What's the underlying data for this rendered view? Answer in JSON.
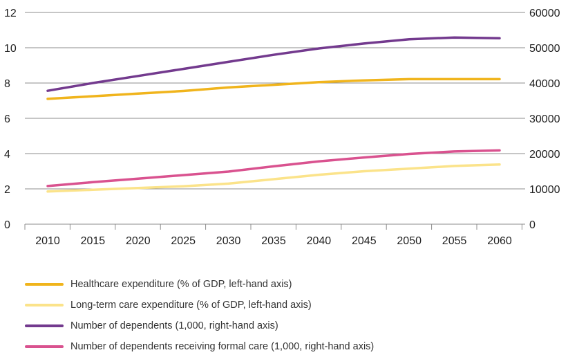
{
  "chart_data": {
    "type": "line",
    "x": [
      2010,
      2015,
      2020,
      2025,
      2030,
      2035,
      2040,
      2045,
      2050,
      2055,
      2060
    ],
    "y_left_ticks": [
      "0",
      "2",
      "4",
      "6",
      "8",
      "10",
      "12"
    ],
    "y_right_ticks": [
      "0",
      "10000",
      "20000",
      "30000",
      "40000",
      "50000",
      "60000"
    ],
    "ylim_left": [
      0,
      12
    ],
    "ylim_right": [
      0,
      60000
    ],
    "grid": true,
    "legend_position": "bottom",
    "series": [
      {
        "name": "Healthcare expenditure (% of GDP, left-hand axis)",
        "axis": "left",
        "color": "#f0b41c",
        "values": [
          7.1,
          7.25,
          7.4,
          7.55,
          7.75,
          7.9,
          8.05,
          8.15,
          8.22,
          8.22,
          8.22
        ]
      },
      {
        "name": "Long-term care expenditure (% of GDP, left-hand axis)",
        "axis": "left",
        "color": "#fbe38a",
        "values": [
          1.85,
          1.95,
          2.05,
          2.15,
          2.3,
          2.55,
          2.8,
          3.0,
          3.15,
          3.3,
          3.38
        ]
      },
      {
        "name": "Number of dependents (1,000, right-hand axis)",
        "axis": "right",
        "color": "#733a8e",
        "values": [
          37800,
          40000,
          42000,
          44000,
          46000,
          48000,
          49800,
          51200,
          52400,
          52900,
          52700
        ]
      },
      {
        "name": "Number of dependents receiving formal care (1,000, right-hand axis)",
        "axis": "right",
        "color": "#d9528f",
        "values": [
          10800,
          11900,
          12900,
          13900,
          14900,
          16400,
          17800,
          18900,
          19900,
          20600,
          20900
        ]
      }
    ]
  }
}
